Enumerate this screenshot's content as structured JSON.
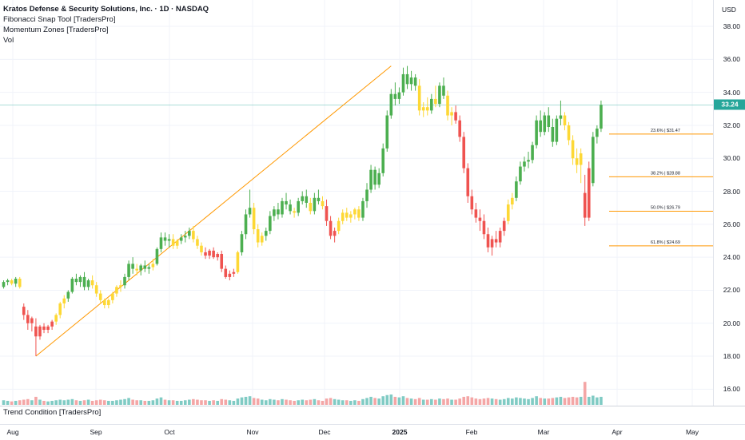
{
  "legend": {
    "title": "Kratos Defense & Security Solutions, Inc. · 1D · NASDAQ",
    "indicators": [
      "Fibonacci Snap Tool [TradersPro]",
      "Momentum Zones [TradersPro]",
      "Vol"
    ]
  },
  "lower_pane": {
    "title": "Trend Condition [TradersPro]"
  },
  "price_scale": {
    "currency": "USD",
    "ticks": [
      "38.00",
      "36.00",
      "34.00",
      "32.00",
      "30.00",
      "28.00",
      "26.00",
      "24.00",
      "22.00",
      "20.00",
      "18.00",
      "16.00"
    ],
    "last_price": "33.24"
  },
  "time_axis": {
    "labels": [
      {
        "text": "Aug",
        "bold": false
      },
      {
        "text": "Sep",
        "bold": false
      },
      {
        "text": "Oct",
        "bold": false
      },
      {
        "text": "Nov",
        "bold": false
      },
      {
        "text": "Dec",
        "bold": false
      },
      {
        "text": "2025",
        "bold": true
      },
      {
        "text": "Feb",
        "bold": false
      },
      {
        "text": "Mar",
        "bold": false
      },
      {
        "text": "Apr",
        "bold": false
      },
      {
        "text": "May",
        "bold": false
      }
    ]
  },
  "colors": {
    "bull": "#4caf50",
    "bear": "#ef5350",
    "neutral": "#fdd835",
    "vol_up": "#80cbc4",
    "vol_down": "#f4a6a6",
    "trendline": "#ff9800",
    "fib": "#ff9800",
    "last_price": "#26a69a"
  },
  "chart_data": {
    "type": "candlestick",
    "ylim": [
      15.0,
      39.6
    ],
    "last_price": 33.24,
    "trendline": {
      "from": {
        "bar": 8,
        "price": 18.0
      },
      "to": {
        "bar": 96,
        "price": 35.6
      }
    },
    "fib_levels": [
      {
        "label": "23.6% | $31.47",
        "price": 31.47
      },
      {
        "label": "38.2% | $28.88",
        "price": 28.88
      },
      {
        "label": "50.0% | $26.79",
        "price": 26.79
      },
      {
        "label": "61.8% | $24.69",
        "price": 24.69
      }
    ],
    "candles": [
      [
        22.2,
        22.6,
        22.1,
        22.5,
        "bull",
        8
      ],
      [
        22.5,
        22.7,
        22.3,
        22.6,
        "bull",
        7
      ],
      [
        22.6,
        22.7,
        22.3,
        22.4,
        "neutral",
        6
      ],
      [
        22.4,
        22.8,
        22.2,
        22.7,
        "bull",
        7
      ],
      [
        22.7,
        22.8,
        22.1,
        22.2,
        "neutral",
        8
      ],
      [
        21.0,
        21.2,
        20.2,
        20.5,
        "bear",
        9
      ],
      [
        20.5,
        20.8,
        19.6,
        20.0,
        "bear",
        10
      ],
      [
        20.0,
        20.4,
        19.5,
        20.3,
        "bear",
        8
      ],
      [
        19.8,
        20.3,
        18.0,
        19.2,
        "bear",
        14
      ],
      [
        19.2,
        19.9,
        19.0,
        19.8,
        "bear",
        9
      ],
      [
        19.8,
        20.0,
        19.4,
        19.6,
        "bear",
        7
      ],
      [
        19.6,
        19.9,
        19.4,
        19.8,
        "bear",
        6
      ],
      [
        19.8,
        20.2,
        19.6,
        20.1,
        "bear",
        7
      ],
      [
        20.1,
        20.6,
        19.9,
        20.5,
        "neutral",
        8
      ],
      [
        20.5,
        21.3,
        20.3,
        21.2,
        "neutral",
        9
      ],
      [
        21.2,
        21.7,
        20.9,
        21.5,
        "neutral",
        8
      ],
      [
        21.5,
        22.0,
        21.3,
        21.9,
        "bull",
        9
      ],
      [
        21.9,
        22.8,
        21.8,
        22.7,
        "bull",
        10
      ],
      [
        22.7,
        23.0,
        22.3,
        22.5,
        "bull",
        8
      ],
      [
        22.5,
        22.9,
        22.2,
        22.8,
        "bull",
        7
      ],
      [
        22.8,
        23.1,
        22.0,
        22.2,
        "bull",
        8
      ],
      [
        22.2,
        22.7,
        22.0,
        22.6,
        "bull",
        9
      ],
      [
        22.6,
        22.9,
        22.1,
        22.3,
        "neutral",
        7
      ],
      [
        22.3,
        22.5,
        21.6,
        21.8,
        "neutral",
        8
      ],
      [
        21.8,
        22.0,
        21.2,
        21.4,
        "neutral",
        9
      ],
      [
        21.4,
        21.5,
        20.9,
        21.1,
        "neutral",
        8
      ],
      [
        21.1,
        21.5,
        20.9,
        21.4,
        "neutral",
        7
      ],
      [
        21.4,
        21.9,
        21.2,
        21.8,
        "neutral",
        7
      ],
      [
        21.8,
        22.3,
        21.6,
        22.2,
        "neutral",
        8
      ],
      [
        22.2,
        22.6,
        21.9,
        22.3,
        "neutral",
        9
      ],
      [
        22.3,
        23.0,
        22.1,
        22.8,
        "bull",
        10
      ],
      [
        22.8,
        23.8,
        22.6,
        23.6,
        "bull",
        12
      ],
      [
        23.6,
        24.0,
        23.0,
        23.3,
        "bull",
        9
      ],
      [
        23.3,
        23.6,
        22.9,
        23.2,
        "neutral",
        8
      ],
      [
        23.2,
        23.6,
        22.9,
        23.5,
        "bull",
        8
      ],
      [
        23.5,
        23.8,
        23.1,
        23.3,
        "bull",
        7
      ],
      [
        23.3,
        23.6,
        23.0,
        23.4,
        "bull",
        7
      ],
      [
        23.4,
        23.9,
        23.2,
        23.6,
        "neutral",
        8
      ],
      [
        23.6,
        24.6,
        23.5,
        24.5,
        "bull",
        11
      ],
      [
        24.5,
        25.5,
        24.3,
        25.2,
        "bull",
        13
      ],
      [
        25.2,
        25.5,
        24.7,
        25.0,
        "bull",
        9
      ],
      [
        25.0,
        25.4,
        24.6,
        25.1,
        "bull",
        8
      ],
      [
        25.1,
        25.4,
        24.5,
        24.7,
        "neutral",
        8
      ],
      [
        24.7,
        25.1,
        24.5,
        25.0,
        "neutral",
        7
      ],
      [
        25.0,
        25.4,
        24.8,
        25.2,
        "bull",
        7
      ],
      [
        25.2,
        25.6,
        24.9,
        25.3,
        "bull",
        8
      ],
      [
        25.3,
        25.8,
        25.1,
        25.6,
        "bull",
        9
      ],
      [
        25.6,
        25.9,
        24.9,
        25.1,
        "neutral",
        10
      ],
      [
        25.1,
        25.3,
        24.5,
        24.7,
        "neutral",
        9
      ],
      [
        24.7,
        24.9,
        24.1,
        24.3,
        "neutral",
        8
      ],
      [
        24.3,
        24.6,
        23.9,
        24.1,
        "bear",
        8
      ],
      [
        24.1,
        24.5,
        23.9,
        24.4,
        "bear",
        7
      ],
      [
        24.4,
        24.6,
        23.9,
        24.0,
        "bear",
        8
      ],
      [
        24.0,
        24.3,
        23.8,
        24.2,
        "bear",
        7
      ],
      [
        24.2,
        24.4,
        23.1,
        23.3,
        "bear",
        10
      ],
      [
        23.3,
        23.5,
        22.7,
        22.8,
        "bear",
        9
      ],
      [
        22.8,
        23.2,
        22.6,
        23.0,
        "bear",
        8
      ],
      [
        23.0,
        23.3,
        22.8,
        23.1,
        "bear",
        7
      ],
      [
        23.1,
        24.4,
        23.0,
        24.3,
        "neutral",
        11
      ],
      [
        24.3,
        25.6,
        24.1,
        25.4,
        "bull",
        13
      ],
      [
        25.4,
        26.9,
        25.1,
        26.6,
        "bull",
        14
      ],
      [
        26.6,
        28.1,
        26.4,
        27.0,
        "bull",
        15
      ],
      [
        27.0,
        27.3,
        25.4,
        25.7,
        "neutral",
        12
      ],
      [
        25.7,
        26.0,
        24.6,
        24.9,
        "neutral",
        11
      ],
      [
        24.9,
        25.5,
        24.7,
        25.3,
        "neutral",
        9
      ],
      [
        25.3,
        25.8,
        25.0,
        25.6,
        "bull",
        8
      ],
      [
        25.6,
        26.8,
        25.4,
        26.5,
        "bull",
        10
      ],
      [
        26.5,
        27.1,
        26.2,
        26.9,
        "bull",
        9
      ],
      [
        26.9,
        27.3,
        26.3,
        26.6,
        "bull",
        8
      ],
      [
        26.6,
        27.6,
        26.4,
        27.4,
        "bull",
        10
      ],
      [
        27.4,
        27.9,
        26.9,
        27.2,
        "bull",
        9
      ],
      [
        27.2,
        27.5,
        26.6,
        26.8,
        "bull",
        8
      ],
      [
        26.8,
        27.0,
        26.4,
        26.7,
        "neutral",
        7
      ],
      [
        26.7,
        27.6,
        26.5,
        27.4,
        "bull",
        8
      ],
      [
        27.4,
        28.0,
        27.2,
        27.7,
        "bull",
        9
      ],
      [
        27.7,
        28.1,
        27.0,
        27.3,
        "bull",
        8
      ],
      [
        27.3,
        27.6,
        26.6,
        26.8,
        "neutral",
        9
      ],
      [
        26.8,
        27.9,
        26.6,
        27.6,
        "bull",
        10
      ],
      [
        27.6,
        28.1,
        27.2,
        27.4,
        "bull",
        8
      ],
      [
        27.4,
        27.7,
        26.9,
        27.1,
        "neutral",
        7
      ],
      [
        27.1,
        27.5,
        25.9,
        26.2,
        "bear",
        11
      ],
      [
        26.2,
        26.5,
        25.1,
        25.3,
        "bear",
        12
      ],
      [
        25.3,
        25.8,
        24.9,
        25.6,
        "bear",
        10
      ],
      [
        25.6,
        26.4,
        25.4,
        26.2,
        "neutral",
        9
      ],
      [
        26.2,
        26.9,
        26.0,
        26.7,
        "neutral",
        8
      ],
      [
        26.7,
        27.0,
        26.2,
        26.4,
        "neutral",
        8
      ],
      [
        26.4,
        26.8,
        26.1,
        26.6,
        "neutral",
        7
      ],
      [
        26.6,
        27.0,
        26.3,
        26.9,
        "neutral",
        8
      ],
      [
        26.9,
        27.1,
        26.2,
        26.4,
        "neutral",
        7
      ],
      [
        26.4,
        27.6,
        26.2,
        27.4,
        "bull",
        10
      ],
      [
        27.4,
        28.5,
        27.0,
        28.1,
        "bull",
        12
      ],
      [
        28.1,
        29.6,
        27.9,
        29.3,
        "bull",
        14
      ],
      [
        29.3,
        29.5,
        28.1,
        28.4,
        "bull",
        12
      ],
      [
        28.4,
        29.4,
        28.2,
        29.1,
        "bull",
        11
      ],
      [
        29.1,
        30.9,
        28.9,
        30.6,
        "bull",
        15
      ],
      [
        30.6,
        32.9,
        30.4,
        32.6,
        "bull",
        17
      ],
      [
        32.6,
        34.2,
        32.4,
        33.9,
        "bull",
        18
      ],
      [
        33.9,
        34.6,
        33.2,
        33.6,
        "bull",
        14
      ],
      [
        33.6,
        34.3,
        33.3,
        34.0,
        "bull",
        13
      ],
      [
        34.0,
        35.5,
        33.8,
        35.1,
        "bull",
        15
      ],
      [
        35.1,
        35.6,
        34.2,
        34.5,
        "bull",
        12
      ],
      [
        34.5,
        35.3,
        34.1,
        34.9,
        "bull",
        11
      ],
      [
        34.9,
        35.1,
        34.1,
        34.4,
        "bull",
        10
      ],
      [
        34.4,
        34.8,
        32.6,
        32.9,
        "neutral",
        12
      ],
      [
        32.9,
        33.4,
        32.5,
        33.1,
        "neutral",
        9
      ],
      [
        33.1,
        33.7,
        32.6,
        32.9,
        "neutral",
        9
      ],
      [
        32.9,
        33.9,
        32.7,
        33.6,
        "bull",
        10
      ],
      [
        33.6,
        34.4,
        33.1,
        33.3,
        "neutral",
        9
      ],
      [
        33.3,
        34.6,
        33.1,
        34.4,
        "bull",
        11
      ],
      [
        34.4,
        34.9,
        33.6,
        33.8,
        "bull",
        10
      ],
      [
        33.8,
        34.1,
        32.3,
        32.6,
        "neutral",
        11
      ],
      [
        32.6,
        33.1,
        32.0,
        32.8,
        "neutral",
        9
      ],
      [
        32.8,
        33.2,
        32.1,
        32.3,
        "bear",
        9
      ],
      [
        32.3,
        32.6,
        31.0,
        31.3,
        "bear",
        11
      ],
      [
        31.3,
        31.6,
        29.1,
        29.4,
        "bear",
        14
      ],
      [
        29.4,
        29.7,
        27.3,
        27.7,
        "bear",
        15
      ],
      [
        27.7,
        28.1,
        26.6,
        26.9,
        "bear",
        13
      ],
      [
        26.9,
        27.3,
        26.1,
        26.4,
        "bear",
        11
      ],
      [
        26.4,
        26.9,
        25.6,
        26.2,
        "bear",
        10
      ],
      [
        26.2,
        26.6,
        25.1,
        25.4,
        "bear",
        11
      ],
      [
        25.4,
        25.8,
        24.3,
        24.6,
        "bear",
        12
      ],
      [
        24.6,
        25.3,
        24.1,
        25.1,
        "bear",
        11
      ],
      [
        25.1,
        25.6,
        24.6,
        24.9,
        "bear",
        10
      ],
      [
        24.9,
        25.8,
        24.6,
        25.6,
        "bear",
        9
      ],
      [
        25.6,
        26.4,
        25.3,
        26.2,
        "bear",
        10
      ],
      [
        26.2,
        27.5,
        26.0,
        27.2,
        "neutral",
        12
      ],
      [
        27.2,
        27.9,
        26.9,
        27.6,
        "neutral",
        11
      ],
      [
        27.6,
        28.9,
        27.4,
        28.6,
        "bull",
        13
      ],
      [
        28.6,
        29.8,
        28.4,
        29.5,
        "bull",
        12
      ],
      [
        29.5,
        30.1,
        29.2,
        29.8,
        "bull",
        11
      ],
      [
        29.8,
        30.4,
        29.4,
        29.9,
        "bull",
        10
      ],
      [
        29.9,
        31.0,
        29.7,
        30.8,
        "bull",
        12
      ],
      [
        30.8,
        32.6,
        30.6,
        32.3,
        "bull",
        15
      ],
      [
        32.3,
        32.9,
        31.3,
        31.6,
        "bull",
        12
      ],
      [
        31.6,
        32.8,
        31.4,
        32.6,
        "bull",
        11
      ],
      [
        32.6,
        33.1,
        31.6,
        31.9,
        "bull",
        11
      ],
      [
        31.9,
        32.4,
        30.7,
        31.0,
        "bull",
        12
      ],
      [
        31.0,
        32.6,
        30.8,
        32.4,
        "bull",
        13
      ],
      [
        32.4,
        33.5,
        32.0,
        32.6,
        "bull",
        14
      ],
      [
        32.6,
        32.8,
        31.7,
        32.0,
        "neutral",
        12
      ],
      [
        32.0,
        32.2,
        30.8,
        31.1,
        "neutral",
        13
      ],
      [
        31.1,
        31.4,
        29.6,
        30.0,
        "neutral",
        14
      ],
      [
        30.0,
        30.6,
        29.1,
        29.6,
        "neutral",
        13
      ],
      [
        29.6,
        30.6,
        28.5,
        30.3,
        "neutral",
        14
      ],
      [
        27.9,
        29.0,
        25.9,
        26.4,
        "bear",
        40
      ],
      [
        26.4,
        29.8,
        26.2,
        29.4,
        "bear",
        14
      ],
      [
        28.5,
        31.6,
        28.3,
        31.3,
        "bull",
        16
      ],
      [
        31.3,
        32.0,
        30.9,
        31.8,
        "bull",
        13
      ],
      [
        31.8,
        33.5,
        31.6,
        33.24,
        "bull",
        14
      ]
    ]
  }
}
